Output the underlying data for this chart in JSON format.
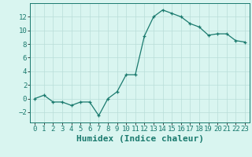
{
  "x": [
    0,
    1,
    2,
    3,
    4,
    5,
    6,
    7,
    8,
    9,
    10,
    11,
    12,
    13,
    14,
    15,
    16,
    17,
    18,
    19,
    20,
    21,
    22,
    23
  ],
  "y": [
    0.0,
    0.5,
    -0.5,
    -0.5,
    -1.0,
    -0.5,
    -0.5,
    -2.5,
    0.0,
    1.0,
    3.5,
    3.5,
    9.2,
    12.0,
    13.0,
    12.5,
    12.0,
    11.0,
    10.5,
    9.3,
    9.5,
    9.5,
    8.5,
    8.3
  ],
  "line_color": "#1a7a6e",
  "marker": "+",
  "bg_color": "#d9f5f0",
  "grid_color": "#b8ddd8",
  "xlabel": "Humidex (Indice chaleur)",
  "xlim": [
    -0.5,
    23.5
  ],
  "ylim": [
    -3.5,
    14.0
  ],
  "yticks": [
    -2,
    0,
    2,
    4,
    6,
    8,
    10,
    12
  ],
  "tick_fontsize": 6.5,
  "label_fontsize": 8.0
}
